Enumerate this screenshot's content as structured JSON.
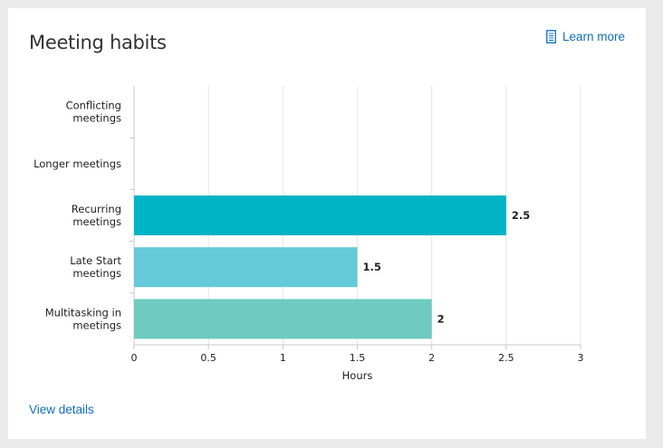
{
  "card": {
    "title": "Meeting habits",
    "learn_more_label": "Learn more",
    "learn_more_icon": "document-icon",
    "view_details_label": "View details"
  },
  "colors": {
    "link": "#0f6cbd",
    "grid": "#e6e6e6",
    "axis": "#c8c8c8"
  },
  "chart_data": {
    "type": "bar",
    "orientation": "horizontal",
    "categories": [
      [
        "Conflicting",
        "meetings"
      ],
      [
        "Longer meetings"
      ],
      [
        "Recurring",
        "meetings"
      ],
      [
        "Late Start",
        "meetings"
      ],
      [
        "Multitasking in",
        "meetings"
      ]
    ],
    "values": [
      null,
      null,
      2.5,
      1.5,
      2
    ],
    "value_labels": [
      "",
      "",
      "2.5",
      "1.5",
      "2"
    ],
    "bar_colors": [
      "#00b7c3",
      "#00b7c3",
      "#00b4c5",
      "#64c9d8",
      "#6ecac1"
    ],
    "xlabel": "Hours",
    "xlim": [
      0,
      3
    ],
    "xticks": [
      "0",
      "0.5",
      "1",
      "1.5",
      "2",
      "2.5",
      "3"
    ],
    "grid": true
  }
}
